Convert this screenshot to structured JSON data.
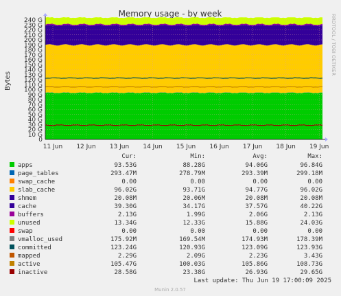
{
  "chart_data": {
    "type": "area",
    "title": "Memory usage - by week",
    "ylabel": "Bytes",
    "side_label": "RRDTOOL / TOBI OETIKER",
    "ylim": [
      0,
      240
    ],
    "y_unit": "G",
    "y_ticks": [
      "0",
      "10 G",
      "20 G",
      "30 G",
      "40 G",
      "50 G",
      "60 G",
      "70 G",
      "80 G",
      "90 G",
      "100 G",
      "110 G",
      "120 G",
      "130 G",
      "140 G",
      "150 G",
      "160 G",
      "170 G",
      "180 G",
      "190 G",
      "200 G",
      "210 G",
      "220 G",
      "230 G",
      "240 G"
    ],
    "x_ticks": [
      "11 Jun",
      "12 Jun",
      "13 Jun",
      "14 Jun",
      "15 Jun",
      "16 Jun",
      "17 Jun",
      "18 Jun",
      "19 Jun"
    ],
    "grid": true,
    "stacked_series": [
      {
        "name": "apps",
        "color": "#00cc00",
        "cur": 93.53
      },
      {
        "name": "page_tables",
        "color": "#0066b3",
        "cur": 0.29
      },
      {
        "name": "swap_cache",
        "color": "#ff8000",
        "cur": 0.0
      },
      {
        "name": "slab_cache",
        "color": "#ffcc00",
        "cur": 96.02
      },
      {
        "name": "shmem",
        "color": "#330099",
        "cur": 0.02
      },
      {
        "name": "cache",
        "color": "#330099",
        "cur": 39.3
      },
      {
        "name": "buffers",
        "color": "#990099",
        "cur": 2.13
      },
      {
        "name": "unused",
        "color": "#ccff00",
        "cur": 13.34
      }
    ],
    "line_series": [
      {
        "name": "committed",
        "color": "#00515c",
        "value": 123.24
      },
      {
        "name": "active",
        "color": "#c08000",
        "value": 105.47
      },
      {
        "name": "inactive",
        "color": "#990000",
        "value": 28.58
      }
    ]
  },
  "legend": {
    "headers": {
      "cur": "Cur:",
      "min": "Min:",
      "avg": "Avg:",
      "max": "Max:"
    },
    "rows": [
      {
        "label": "apps",
        "color": "#00cc00",
        "cur": "93.53G",
        "min": "88.28G",
        "avg": "94.06G",
        "max": "96.84G"
      },
      {
        "label": "page_tables",
        "color": "#0066b3",
        "cur": "293.47M",
        "min": "278.79M",
        "avg": "293.39M",
        "max": "299.18M"
      },
      {
        "label": "swap_cache",
        "color": "#ff8000",
        "cur": "0.00",
        "min": "0.00",
        "avg": "0.00",
        "max": "0.00"
      },
      {
        "label": "slab_cache",
        "color": "#ffcc00",
        "cur": "96.02G",
        "min": "93.71G",
        "avg": "94.77G",
        "max": "96.02G"
      },
      {
        "label": "shmem",
        "color": "#330099",
        "cur": "20.08M",
        "min": "20.06M",
        "avg": "20.08M",
        "max": "20.08M"
      },
      {
        "label": "cache",
        "color": "#330099",
        "cur": "39.30G",
        "min": "34.17G",
        "avg": "37.57G",
        "max": "40.22G"
      },
      {
        "label": "buffers",
        "color": "#990099",
        "cur": "2.13G",
        "min": "1.99G",
        "avg": "2.06G",
        "max": "2.13G"
      },
      {
        "label": "unused",
        "color": "#ccff00",
        "cur": "13.34G",
        "min": "12.33G",
        "avg": "15.88G",
        "max": "24.03G"
      },
      {
        "label": "swap",
        "color": "#ff0000",
        "cur": "0.00",
        "min": "0.00",
        "avg": "0.00",
        "max": "0.00"
      },
      {
        "label": "vmalloc_used",
        "color": "#808080",
        "cur": "175.92M",
        "min": "169.54M",
        "avg": "174.93M",
        "max": "178.39M"
      },
      {
        "label": "committed",
        "color": "#00515c",
        "cur": "123.24G",
        "min": "120.93G",
        "avg": "123.09G",
        "max": "123.93G"
      },
      {
        "label": "mapped",
        "color": "#c05600",
        "cur": "2.29G",
        "min": "2.09G",
        "avg": "2.23G",
        "max": "3.43G"
      },
      {
        "label": "active",
        "color": "#c08000",
        "cur": "105.47G",
        "min": "100.03G",
        "avg": "105.86G",
        "max": "108.73G"
      },
      {
        "label": "inactive",
        "color": "#990000",
        "cur": "28.58G",
        "min": "23.38G",
        "avg": "26.93G",
        "max": "29.65G"
      }
    ]
  },
  "footer": {
    "last_update": "Last update: Thu Jun 19 17:00:09 2025",
    "munin": "Munin 2.0.57"
  }
}
